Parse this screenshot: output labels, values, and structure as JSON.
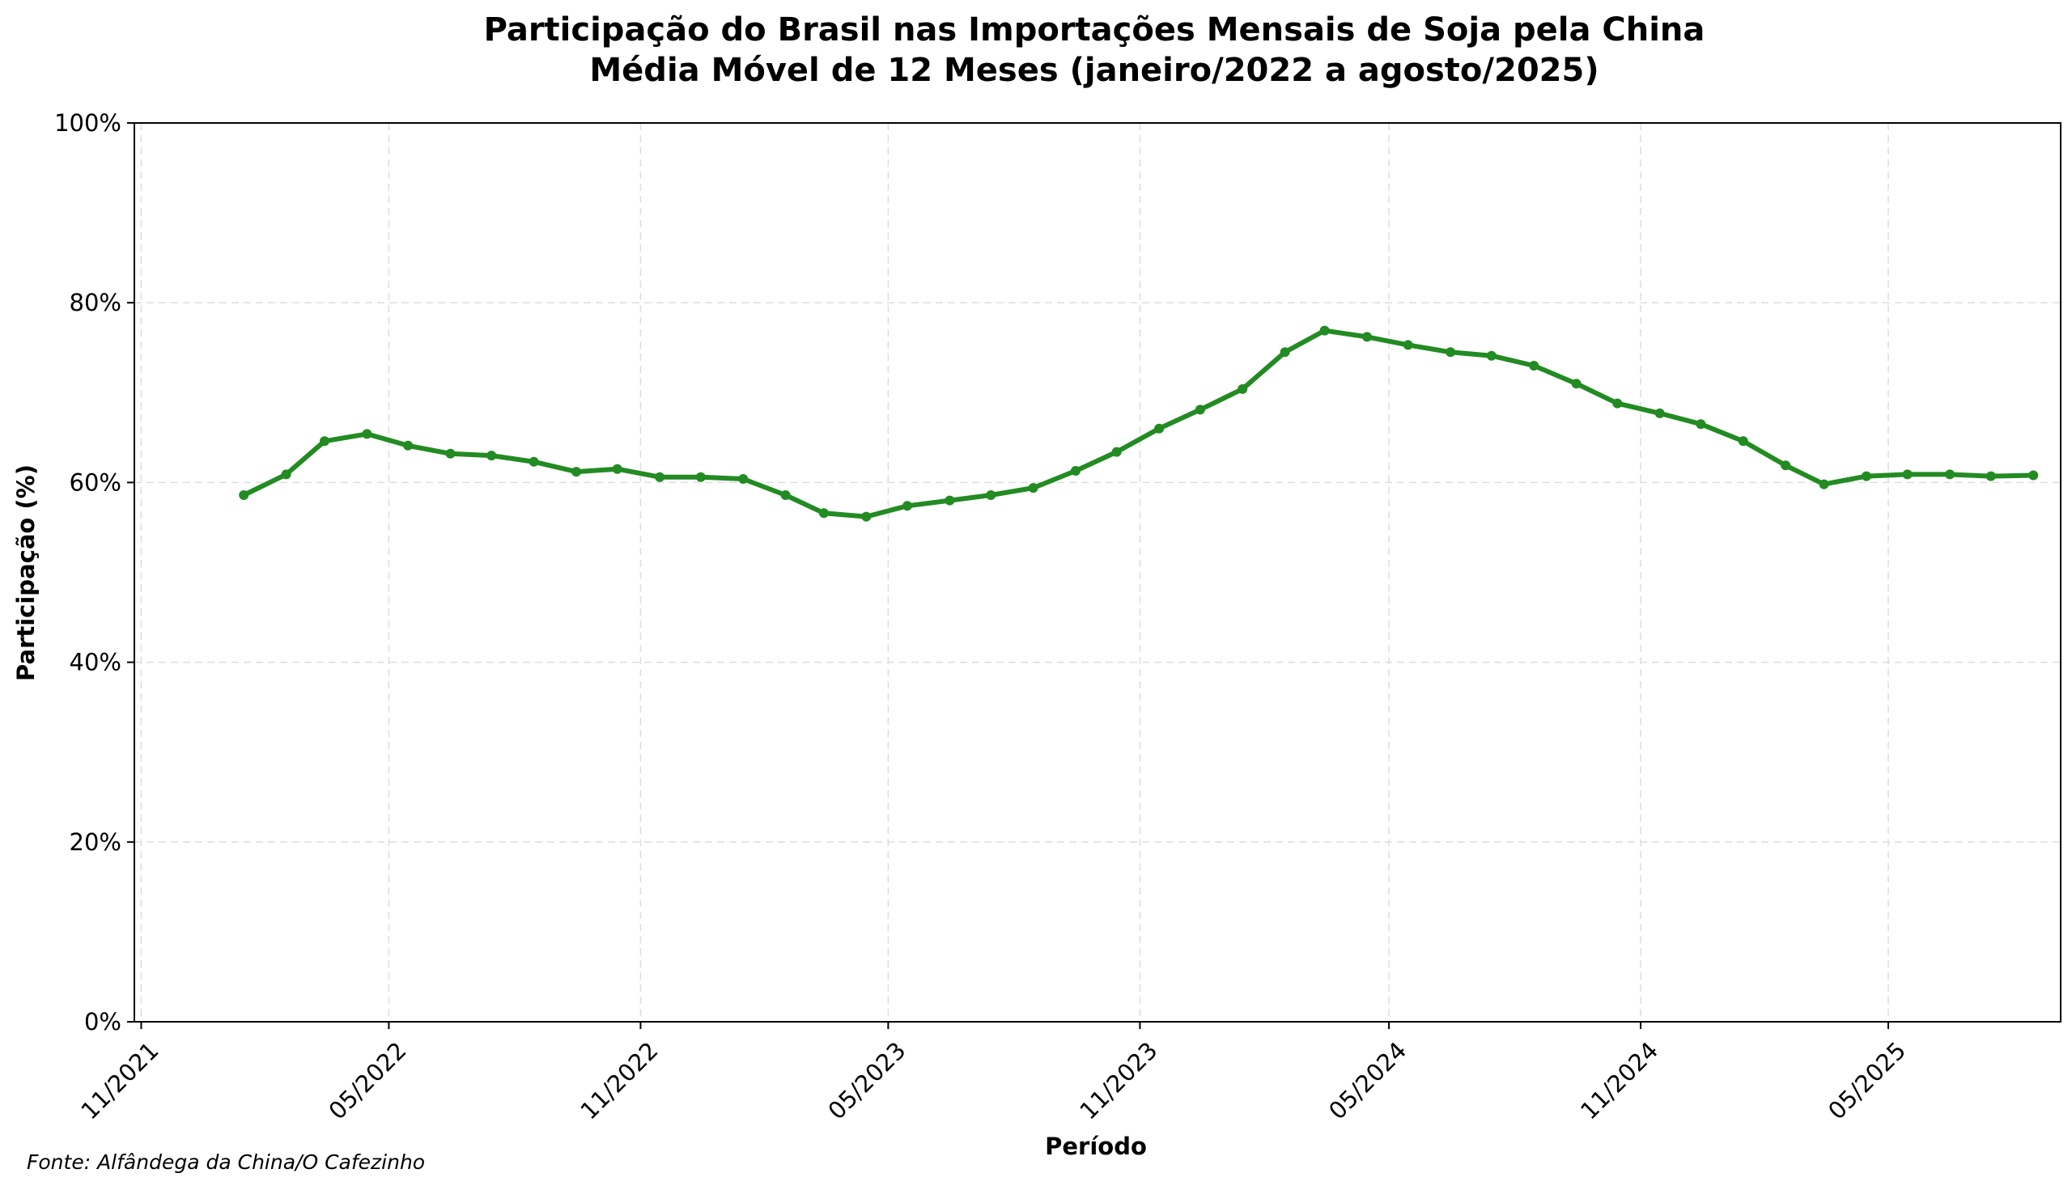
{
  "chart_data": {
    "type": "line",
    "title": "Participação do Brasil nas Importações Mensais de Soja pela China",
    "subtitle": "Média Móvel de 12 Meses (janeiro/2022 a agosto/2025)",
    "xlabel": "Período",
    "ylabel": "Participação (%)",
    "source": "Fonte: Alfândega da China/O Cafezinho",
    "ylim": [
      0,
      100
    ],
    "y_ticks": [
      0,
      20,
      40,
      60,
      80,
      100
    ],
    "y_tick_labels": [
      "0%",
      "20%",
      "40%",
      "60%",
      "80%",
      "100%"
    ],
    "xlim": [
      "2021-10-27",
      "2025-09-04"
    ],
    "x_ticks": [
      "2021-11-01",
      "2022-05-01",
      "2022-11-01",
      "2023-05-01",
      "2023-11-01",
      "2024-05-01",
      "2024-11-01",
      "2025-05-01"
    ],
    "x_tick_labels": [
      "11/2021",
      "05/2022",
      "11/2022",
      "05/2023",
      "11/2023",
      "05/2024",
      "11/2024",
      "05/2025"
    ],
    "grid": true,
    "color": "#228b22",
    "series": [
      {
        "x": [
          "2022-01",
          "2022-02",
          "2022-03",
          "2022-04",
          "2022-05",
          "2022-06",
          "2022-07",
          "2022-08",
          "2022-09",
          "2022-10",
          "2022-11",
          "2022-12",
          "2023-01",
          "2023-02",
          "2023-03",
          "2023-04",
          "2023-05",
          "2023-06",
          "2023-07",
          "2023-08",
          "2023-09",
          "2023-10",
          "2023-11",
          "2023-12",
          "2024-01",
          "2024-02",
          "2024-03",
          "2024-04",
          "2024-05",
          "2024-06",
          "2024-07",
          "2024-08",
          "2024-09",
          "2024-10",
          "2024-11",
          "2024-12",
          "2025-01",
          "2025-02",
          "2025-03",
          "2025-04",
          "2025-05",
          "2025-06",
          "2025-07",
          "2025-08"
        ],
        "values": [
          58.6,
          60.9,
          64.6,
          65.4,
          64.1,
          63.2,
          63.0,
          62.3,
          61.2,
          61.5,
          60.6,
          60.6,
          60.4,
          58.6,
          56.6,
          56.2,
          57.4,
          58.0,
          58.6,
          59.4,
          61.3,
          63.4,
          66.0,
          68.1,
          70.4,
          74.5,
          76.9,
          76.2,
          75.3,
          74.5,
          74.1,
          73.0,
          71.0,
          68.8,
          67.7,
          66.5,
          64.6,
          61.9,
          59.8,
          60.7,
          60.9,
          60.9,
          60.7,
          60.8
        ]
      }
    ]
  }
}
